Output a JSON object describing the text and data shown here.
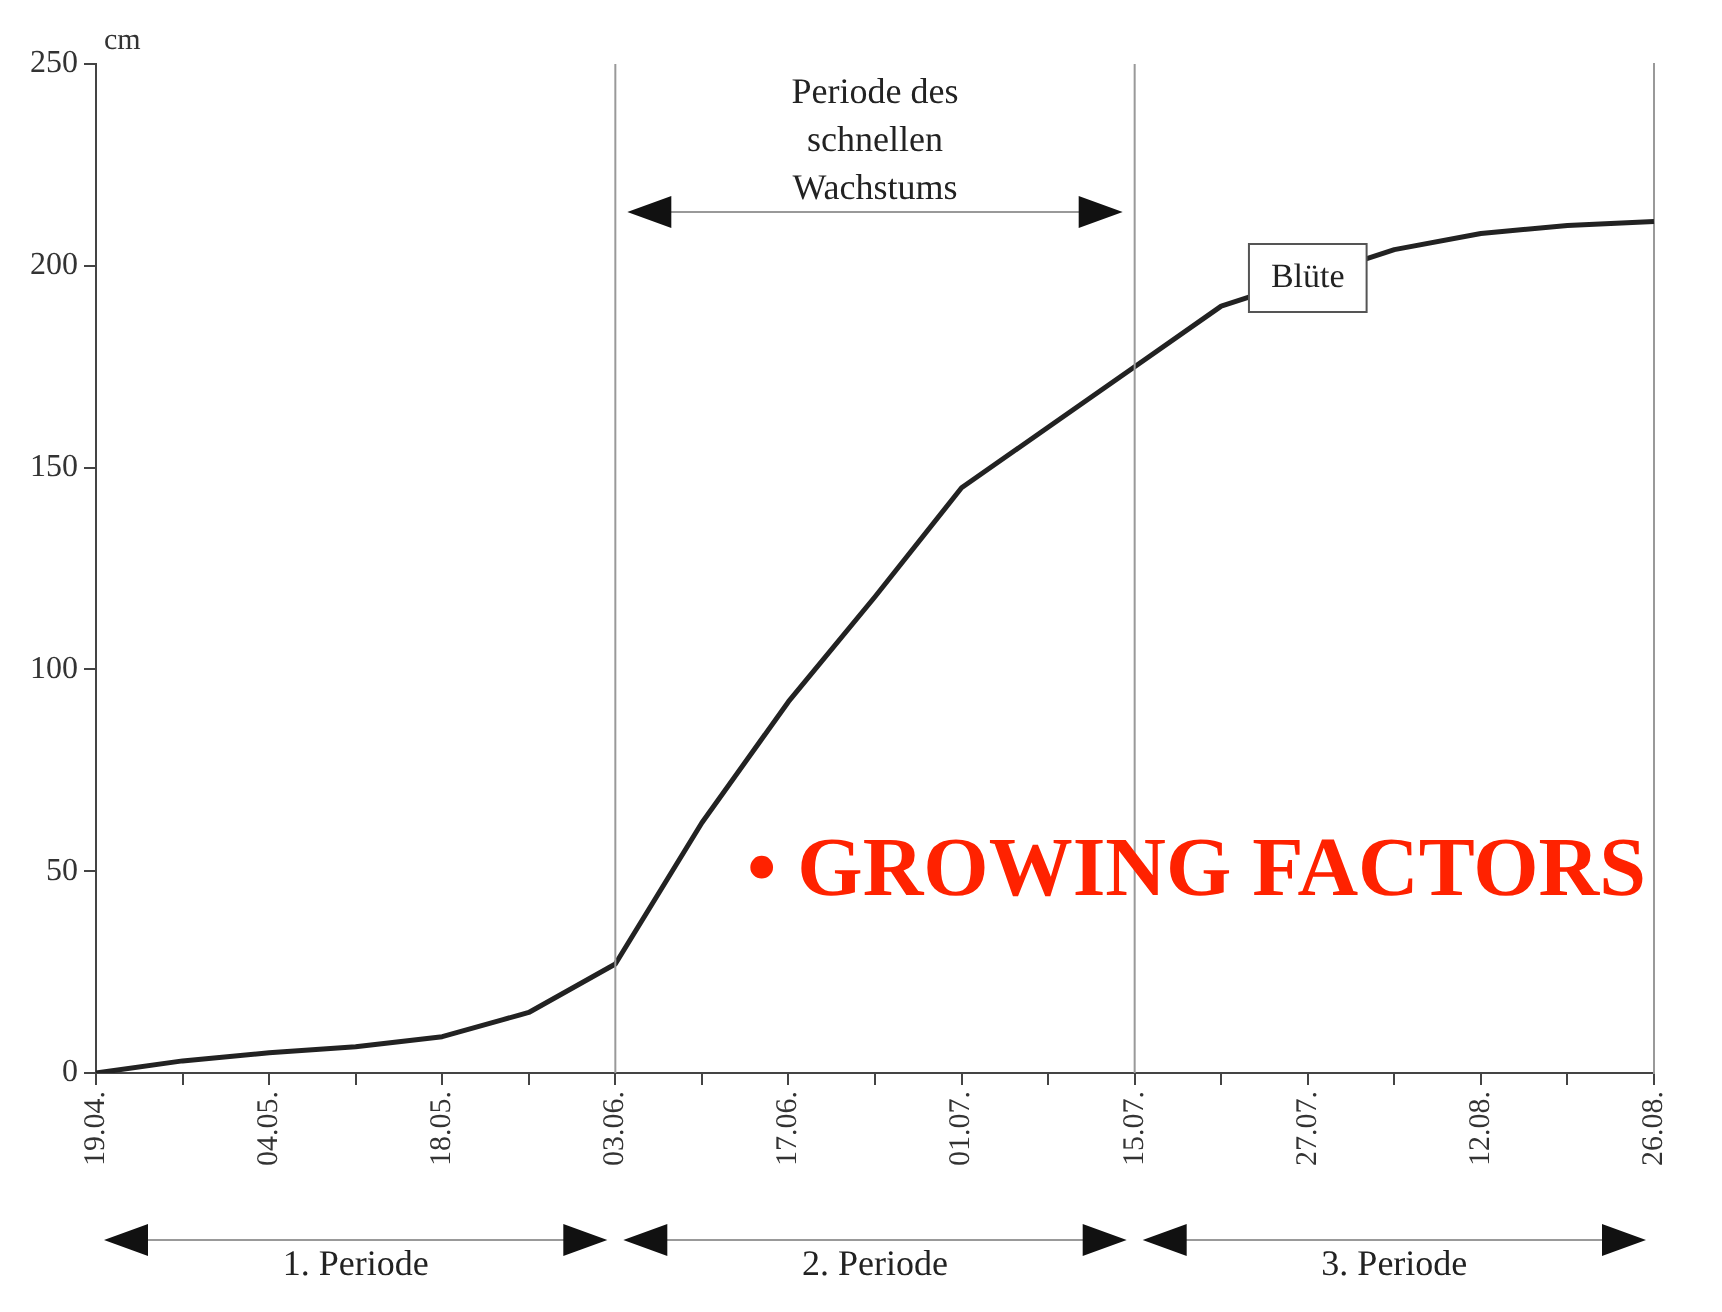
{
  "chart_data": {
    "type": "line",
    "ylabel": "cm",
    "categories": [
      "19.04.",
      null,
      "04.05.",
      null,
      "18.05.",
      null,
      "03.06.",
      null,
      "17.06.",
      null,
      "01.07.",
      null,
      "15.07.",
      null,
      "27.07.",
      null,
      "12.08.",
      null,
      "26.08."
    ],
    "series": [
      {
        "color": "#222222",
        "values": [
          0,
          3,
          5,
          6.5,
          9,
          15,
          27,
          62,
          92,
          118,
          145,
          160,
          175,
          190,
          null,
          204,
          208,
          210,
          211
        ]
      }
    ],
    "ylim": [
      0,
      250
    ],
    "yticks": [
      0,
      50,
      100,
      150,
      200,
      250
    ],
    "grid": false,
    "legend": false,
    "marker": "none",
    "line_style": "solid",
    "ref_lines": [
      {
        "axis": "x",
        "value": "03.06.",
        "color": "#999999"
      },
      {
        "axis": "x",
        "value": "15.07.",
        "color": "#999999"
      }
    ],
    "annotations": [
      "Periode des schnellen Wachstums",
      {
        "text": "Blüte",
        "x": "27.07.",
        "y": 197
      },
      "• GROWING FACTORS",
      "1. Periode",
      "2. Periode",
      "3. Periode"
    ]
  }
}
